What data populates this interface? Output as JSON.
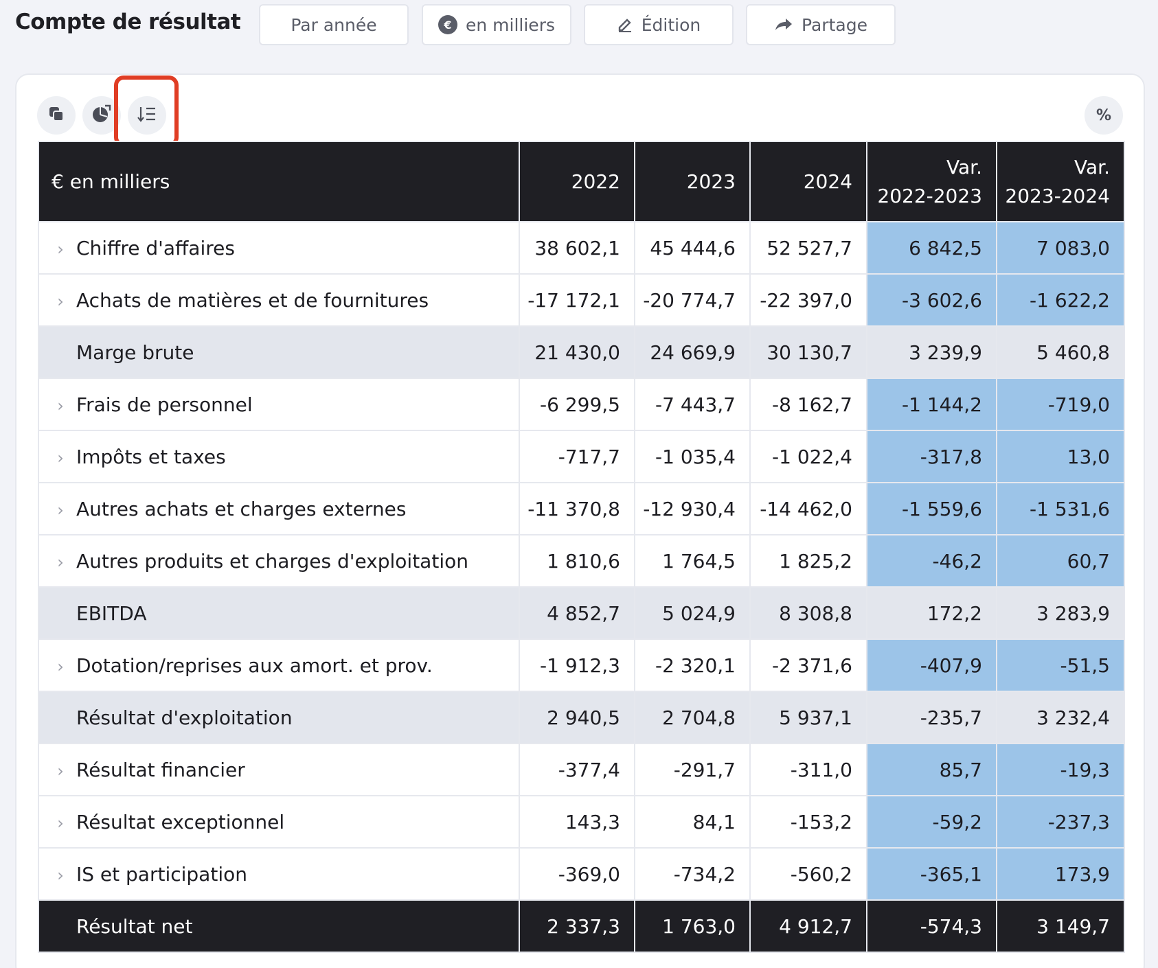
{
  "header": {
    "title": "Compte de résultat",
    "buttons": [
      {
        "label": "Par année",
        "icon": ""
      },
      {
        "label": "en milliers",
        "icon": "euro-coin-icon"
      },
      {
        "label": "Édition",
        "icon": "pen-icon"
      },
      {
        "label": "Partage",
        "icon": "share-arrow-icon"
      }
    ]
  },
  "toolbar": {
    "copy_icon": "copy-icon",
    "chart_icon": "chart-icon",
    "sort_icon": "sort-list-icon",
    "percent_label": "%"
  },
  "table": {
    "columns": [
      "€ en milliers",
      "2022",
      "2023",
      "2024",
      "Var.\n2022-2023",
      "Var.\n2023-2024"
    ],
    "col_var1_line1": "Var.",
    "col_var1_line2": "2022-2023",
    "col_var2_line1": "Var.",
    "col_var2_line2": "2023-2024",
    "rows": [
      {
        "label": "Chiffre d'affaires",
        "kind": "detail",
        "values": [
          "38 602,1",
          "45 444,6",
          "52 527,7",
          "6 842,5",
          "7 083,0"
        ]
      },
      {
        "label": "Achats de matières et de fournitures",
        "kind": "detail",
        "values": [
          "-17 172,1",
          "-20 774,7",
          "-22 397,0",
          "-3 602,6",
          "-1 622,2"
        ]
      },
      {
        "label": "Marge brute",
        "kind": "subtotal",
        "values": [
          "21 430,0",
          "24 669,9",
          "30 130,7",
          "3 239,9",
          "5 460,8"
        ]
      },
      {
        "label": "Frais de personnel",
        "kind": "detail",
        "values": [
          "-6 299,5",
          "-7 443,7",
          "-8 162,7",
          "-1 144,2",
          "-719,0"
        ]
      },
      {
        "label": "Impôts et taxes",
        "kind": "detail",
        "values": [
          "-717,7",
          "-1 035,4",
          "-1 022,4",
          "-317,8",
          "13,0"
        ]
      },
      {
        "label": "Autres achats et charges externes",
        "kind": "detail",
        "values": [
          "-11 370,8",
          "-12 930,4",
          "-14 462,0",
          "-1 559,6",
          "-1 531,6"
        ]
      },
      {
        "label": "Autres produits et charges d'exploitation",
        "kind": "detail",
        "values": [
          "1 810,6",
          "1 764,5",
          "1 825,2",
          "-46,2",
          "60,7"
        ]
      },
      {
        "label": "EBITDA",
        "kind": "subtotal",
        "values": [
          "4 852,7",
          "5 024,9",
          "8 308,8",
          "172,2",
          "3 283,9"
        ]
      },
      {
        "label": "Dotation/reprises aux amort. et prov.",
        "kind": "detail",
        "values": [
          "-1 912,3",
          "-2 320,1",
          "-2 371,6",
          "-407,9",
          "-51,5"
        ]
      },
      {
        "label": "Résultat d'exploitation",
        "kind": "subtotal",
        "values": [
          "2 940,5",
          "2 704,8",
          "5 937,1",
          "-235,7",
          "3 232,4"
        ]
      },
      {
        "label": "Résultat financier",
        "kind": "detail",
        "values": [
          "-377,4",
          "-291,7",
          "-311,0",
          "85,7",
          "-19,3"
        ]
      },
      {
        "label": "Résultat exceptionnel",
        "kind": "detail",
        "values": [
          "143,3",
          "84,1",
          "-153,2",
          "-59,2",
          "-237,3"
        ]
      },
      {
        "label": "IS et participation",
        "kind": "detail",
        "values": [
          "-369,0",
          "-734,2",
          "-560,2",
          "-365,1",
          "173,9"
        ]
      },
      {
        "label": "Résultat net",
        "kind": "total",
        "values": [
          "2 337,3",
          "1 763,0",
          "4 912,7",
          "-574,3",
          "3 149,7"
        ]
      }
    ]
  },
  "colors": {
    "header_bg": "#1f1f24",
    "variance_highlight": "#9cc4e8",
    "subtotal_bg": "#e3e6ed",
    "selection_outline": "#e03d24"
  }
}
